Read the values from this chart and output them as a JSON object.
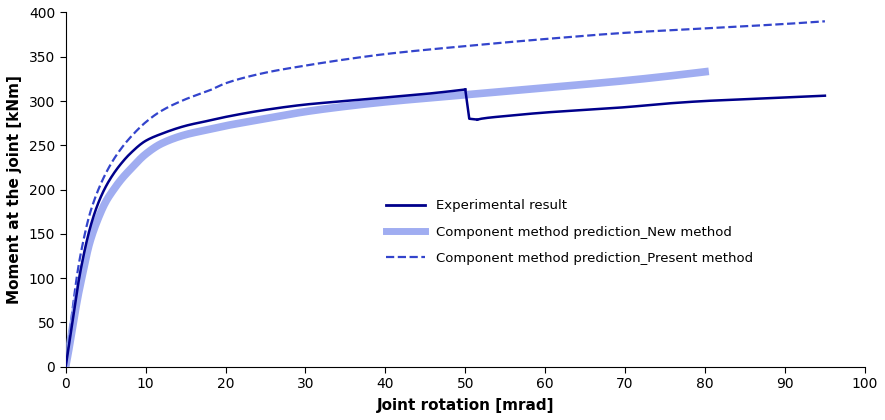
{
  "title": "",
  "xlabel": "Joint rotation [mrad]",
  "ylabel": "Moment at the joint [kNm]",
  "xlim": [
    0,
    100
  ],
  "ylim": [
    0,
    400
  ],
  "xticks": [
    0,
    10,
    20,
    30,
    40,
    50,
    60,
    70,
    80,
    90,
    100
  ],
  "yticks": [
    0,
    50,
    100,
    150,
    200,
    250,
    300,
    350,
    400
  ],
  "exp_color": "#00008B",
  "new_method_color": "#8899EE",
  "present_method_color": "#3344CC",
  "legend_labels": [
    "Experimental result",
    "Component method prediction_New method",
    "Component method prediction_Present method"
  ],
  "figsize": [
    8.85,
    4.2
  ],
  "dpi": 100,
  "exp_points_x": [
    0,
    0.5,
    1,
    1.5,
    2,
    3,
    4,
    5,
    6,
    7,
    8,
    10,
    12,
    15,
    18,
    20,
    25,
    30,
    35,
    40,
    45,
    50,
    50.5,
    51.5,
    52,
    55,
    60,
    65,
    70,
    75,
    80,
    85,
    90,
    95
  ],
  "exp_points_y": [
    0,
    30,
    60,
    90,
    115,
    155,
    183,
    203,
    218,
    230,
    240,
    255,
    263,
    272,
    278,
    282,
    290,
    296,
    300,
    304,
    308,
    313,
    280,
    279,
    280,
    283,
    287,
    290,
    293,
    297,
    300,
    302,
    304,
    306
  ],
  "new_points_x": [
    0,
    0.5,
    1,
    1.5,
    2,
    3,
    4,
    5,
    6,
    7,
    8,
    10,
    12,
    15,
    18,
    20,
    25,
    30,
    35,
    40,
    50,
    60,
    70,
    80
  ],
  "new_points_y": [
    0,
    25,
    52,
    78,
    100,
    140,
    166,
    186,
    200,
    212,
    222,
    240,
    252,
    262,
    268,
    272,
    280,
    288,
    294,
    299,
    307,
    315,
    323,
    333
  ],
  "present_points_x": [
    0,
    0.5,
    1,
    1.5,
    2,
    3,
    4,
    5,
    6,
    7,
    8,
    10,
    12,
    15,
    18,
    20,
    25,
    30,
    35,
    40,
    50,
    60,
    70,
    80,
    90,
    95
  ],
  "present_points_y": [
    0,
    38,
    75,
    108,
    133,
    172,
    198,
    218,
    234,
    247,
    258,
    276,
    289,
    302,
    312,
    320,
    332,
    340,
    347,
    353,
    362,
    370,
    377,
    382,
    387,
    390
  ]
}
